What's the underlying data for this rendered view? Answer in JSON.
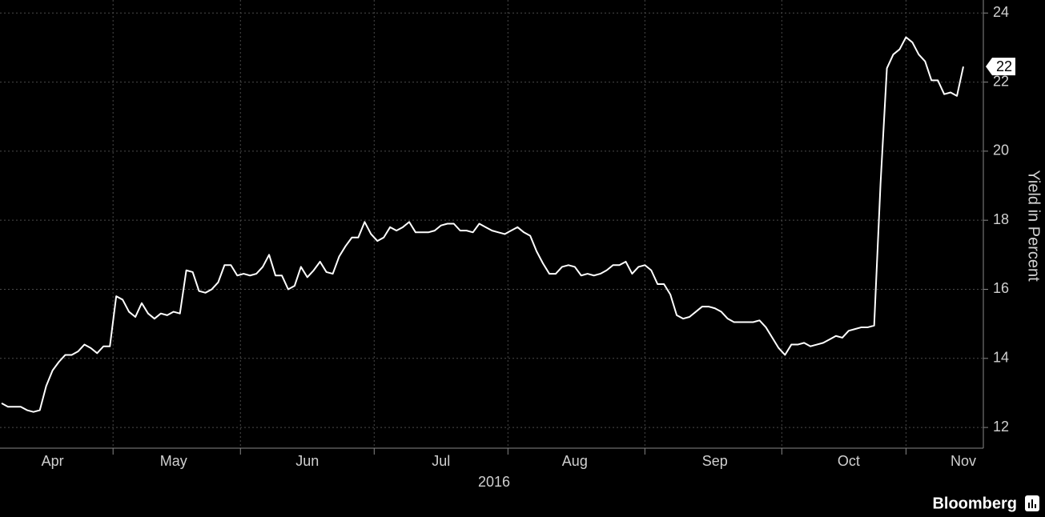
{
  "chart_data": {
    "type": "line",
    "y_axis_label": "Yield in Percent",
    "x_axis_label": "2016",
    "source": "Bloomberg",
    "ylim": [
      11.4,
      24.4
    ],
    "yticks": [
      12,
      14,
      16,
      18,
      20,
      22,
      24
    ],
    "grid": true,
    "color": "#ffffff",
    "last_value_label": "22",
    "categories": [
      null,
      null,
      null,
      null,
      null,
      null,
      null,
      null,
      "Apr",
      null,
      null,
      null,
      null,
      null,
      null,
      null,
      null,
      null,
      null,
      null,
      null,
      null,
      null,
      null,
      null,
      null,
      null,
      "May",
      null,
      null,
      null,
      null,
      null,
      null,
      null,
      null,
      null,
      null,
      null,
      null,
      null,
      null,
      null,
      null,
      null,
      null,
      null,
      null,
      "Jun",
      null,
      null,
      null,
      null,
      null,
      null,
      null,
      null,
      null,
      null,
      null,
      null,
      null,
      null,
      null,
      null,
      null,
      null,
      null,
      null,
      "Jul",
      null,
      null,
      null,
      null,
      null,
      null,
      null,
      null,
      null,
      null,
      null,
      null,
      null,
      null,
      null,
      null,
      null,
      null,
      null,
      null,
      "Aug",
      null,
      null,
      null,
      null,
      null,
      null,
      null,
      null,
      null,
      null,
      null,
      null,
      null,
      null,
      null,
      null,
      null,
      null,
      null,
      null,
      null,
      "Sep",
      null,
      null,
      null,
      null,
      null,
      null,
      null,
      null,
      null,
      null,
      null,
      null,
      null,
      null,
      null,
      null,
      null,
      null,
      null,
      null,
      "Oct",
      null,
      null,
      null,
      null,
      null,
      null,
      null,
      null,
      null,
      null,
      null,
      null,
      null,
      null,
      null,
      null,
      null,
      "Nov"
    ],
    "values": [
      12.7,
      12.6,
      12.6,
      12.6,
      12.5,
      12.45,
      12.5,
      13.2,
      13.65,
      13.9,
      14.1,
      14.1,
      14.2,
      14.4,
      14.3,
      14.15,
      14.35,
      14.35,
      15.8,
      15.7,
      15.35,
      15.2,
      15.6,
      15.3,
      15.15,
      15.3,
      15.25,
      15.35,
      15.3,
      16.55,
      16.5,
      15.95,
      15.9,
      16.0,
      16.2,
      16.7,
      16.7,
      16.4,
      16.45,
      16.4,
      16.45,
      16.65,
      17.0,
      16.4,
      16.4,
      16.0,
      16.1,
      16.65,
      16.35,
      16.55,
      16.8,
      16.5,
      16.45,
      16.95,
      17.25,
      17.5,
      17.5,
      17.95,
      17.6,
      17.4,
      17.5,
      17.8,
      17.7,
      17.8,
      17.95,
      17.65,
      17.65,
      17.65,
      17.7,
      17.85,
      17.9,
      17.9,
      17.7,
      17.7,
      17.65,
      17.9,
      17.8,
      17.7,
      17.65,
      17.6,
      17.7,
      17.8,
      17.65,
      17.55,
      17.1,
      16.75,
      16.45,
      16.45,
      16.65,
      16.7,
      16.65,
      16.4,
      16.45,
      16.4,
      16.45,
      16.55,
      16.7,
      16.7,
      16.8,
      16.45,
      16.65,
      16.7,
      16.55,
      16.15,
      16.15,
      15.85,
      15.25,
      15.15,
      15.2,
      15.35,
      15.5,
      15.5,
      15.45,
      15.35,
      15.15,
      15.05,
      15.05,
      15.05,
      15.05,
      15.1,
      14.9,
      14.6,
      14.3,
      14.1,
      14.4,
      14.4,
      14.45,
      14.35,
      14.4,
      14.45,
      14.55,
      14.65,
      14.6,
      14.8,
      14.85,
      14.9,
      14.9,
      14.95,
      19.05,
      22.4,
      22.8,
      22.95,
      23.3,
      23.15,
      22.8,
      22.6,
      22.05,
      22.05,
      21.65,
      21.7,
      21.6,
      22.45
    ]
  }
}
